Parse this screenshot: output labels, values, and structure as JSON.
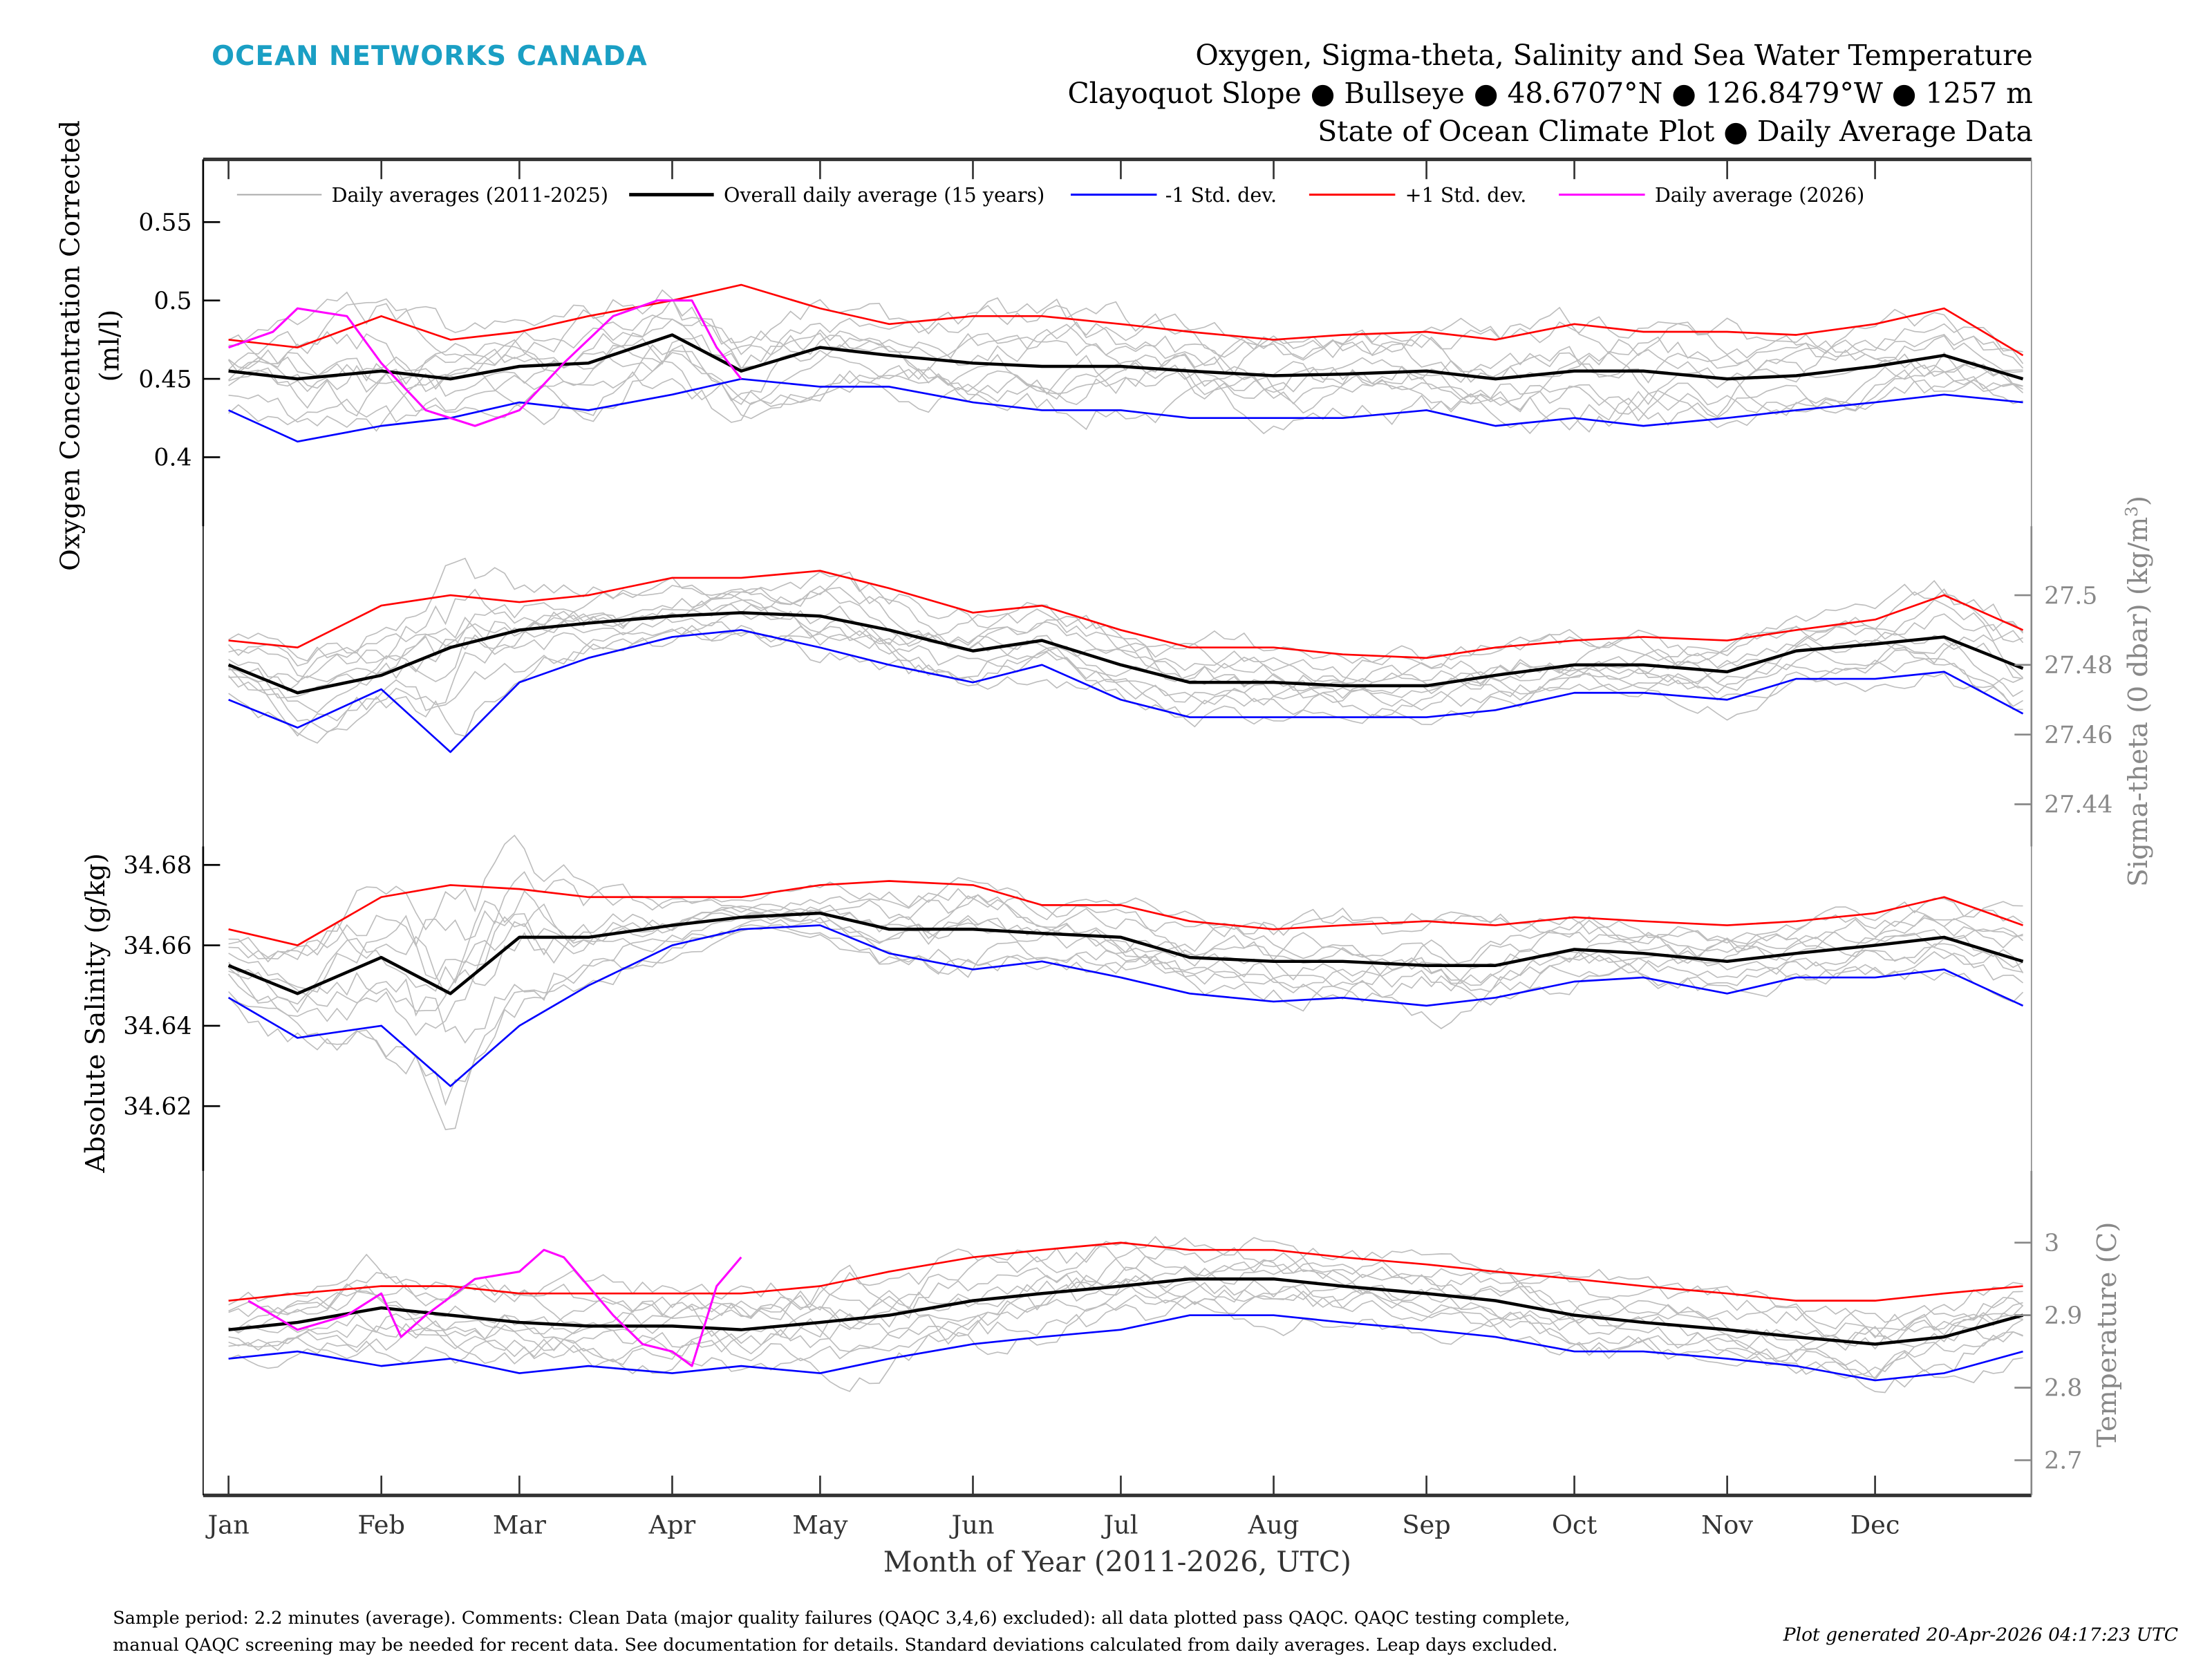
{
  "brand": {
    "name": "OCEAN NETWORKS CANADA",
    "color": "#1a9fc4"
  },
  "header": {
    "title": "Oxygen, Sigma-theta, Salinity and Sea Water Temperature",
    "subtitle": "Clayoquot Slope ● Bullseye ● 48.6707°N ● 126.8479°W ● 1257 m",
    "subtitle2": "State of Ocean Climate Plot ● Daily Average Data"
  },
  "legend": {
    "placement": "top",
    "items": [
      {
        "label": "Daily averages (2011-2025)",
        "color": "#aaaaaa"
      },
      {
        "label": "Overall daily average (15 years)",
        "color": "#000000"
      },
      {
        "label": "-1 Std. dev.",
        "color": "#0000ff"
      },
      {
        "label": "+1 Std. dev.",
        "color": "#ff0000"
      },
      {
        "label": "Daily average (2026)",
        "color": "#ff00ff"
      }
    ]
  },
  "x_axis": {
    "label": "Month of Year (2011-2026, UTC)",
    "ticks": [
      "Jan",
      "Feb",
      "Mar",
      "Apr",
      "May",
      "Jun",
      "Jul",
      "Aug",
      "Sep",
      "Oct",
      "Nov",
      "Dec"
    ],
    "tick_days": [
      1,
      32,
      60,
      91,
      121,
      152,
      182,
      213,
      244,
      274,
      305,
      335
    ],
    "range_days": [
      1,
      365
    ]
  },
  "footer": {
    "note_line1": "Sample period: 2.2 minutes (average). Comments: Clean Data (major quality failures (QAQC 3,4,6) excluded): all data plotted pass QAQC. QAQC testing complete,",
    "note_line2": "manual QAQC screening may be needed for recent data. See documentation for details. Standard deviations calculated from daily averages. Leap days excluded.",
    "generated": "Plot generated 20-Apr-2026 04:17:23 UTC"
  },
  "chart_data": [
    {
      "type": "line",
      "ylabel": "Oxygen Concentration Corrected",
      "ylabel_unit": "(ml/l)",
      "axis_side": "left",
      "ylim": [
        0.356,
        0.59
      ],
      "yticks": [
        0.4,
        0.45,
        0.5,
        0.55
      ],
      "ytick_labels": [
        "0.4",
        "0.45",
        "0.5",
        "0.55"
      ],
      "x_days": [
        1,
        15,
        32,
        46,
        60,
        74,
        91,
        105,
        121,
        135,
        152,
        166,
        182,
        196,
        213,
        227,
        244,
        258,
        274,
        288,
        305,
        319,
        335,
        349,
        365
      ],
      "mean": [
        0.455,
        0.45,
        0.455,
        0.45,
        0.458,
        0.46,
        0.478,
        0.455,
        0.47,
        0.465,
        0.46,
        0.458,
        0.458,
        0.455,
        0.452,
        0.453,
        0.455,
        0.45,
        0.455,
        0.455,
        0.45,
        0.452,
        0.458,
        0.465,
        0.45
      ],
      "plus_std": [
        0.475,
        0.47,
        0.49,
        0.475,
        0.48,
        0.49,
        0.5,
        0.51,
        0.495,
        0.485,
        0.49,
        0.49,
        0.485,
        0.48,
        0.475,
        0.478,
        0.48,
        0.475,
        0.485,
        0.48,
        0.48,
        0.478,
        0.485,
        0.495,
        0.465
      ],
      "minus_std": [
        0.43,
        0.41,
        0.42,
        0.425,
        0.435,
        0.43,
        0.44,
        0.45,
        0.445,
        0.445,
        0.435,
        0.43,
        0.43,
        0.425,
        0.425,
        0.425,
        0.43,
        0.42,
        0.425,
        0.42,
        0.425,
        0.43,
        0.435,
        0.44,
        0.435
      ],
      "current_days": [
        1,
        10,
        15,
        25,
        32,
        41,
        51,
        60,
        69,
        79,
        88,
        95,
        100,
        105
      ],
      "current": [
        0.47,
        0.48,
        0.495,
        0.49,
        0.46,
        0.43,
        0.42,
        0.43,
        0.46,
        0.49,
        0.5,
        0.5,
        0.47,
        0.45
      ]
    },
    {
      "type": "line",
      "ylabel": "Sigma-theta (0 dbar) (kg/m",
      "ylabel_sup": "3",
      "ylabel_close": ")",
      "axis_side": "right",
      "ylim": [
        27.4279,
        27.5198
      ],
      "yticks": [
        27.44,
        27.46,
        27.48,
        27.5
      ],
      "ytick_labels": [
        "27.44",
        "27.46",
        "27.48",
        "27.5"
      ],
      "x_days": [
        1,
        15,
        32,
        46,
        60,
        74,
        91,
        105,
        121,
        135,
        152,
        166,
        182,
        196,
        213,
        227,
        244,
        258,
        274,
        288,
        305,
        319,
        335,
        349,
        365
      ],
      "mean": [
        27.48,
        27.472,
        27.477,
        27.485,
        27.49,
        27.492,
        27.494,
        27.495,
        27.494,
        27.49,
        27.484,
        27.487,
        27.48,
        27.475,
        27.475,
        27.474,
        27.474,
        27.477,
        27.48,
        27.48,
        27.478,
        27.484,
        27.486,
        27.488,
        27.479
      ],
      "plus_std": [
        27.487,
        27.485,
        27.497,
        27.5,
        27.498,
        27.5,
        27.505,
        27.505,
        27.507,
        27.502,
        27.495,
        27.497,
        27.49,
        27.485,
        27.485,
        27.483,
        27.482,
        27.485,
        27.487,
        27.488,
        27.487,
        27.49,
        27.493,
        27.5,
        27.49
      ],
      "minus_std": [
        27.47,
        27.462,
        27.473,
        27.455,
        27.475,
        27.482,
        27.488,
        27.49,
        27.485,
        27.48,
        27.475,
        27.48,
        27.47,
        27.465,
        27.465,
        27.465,
        27.465,
        27.467,
        27.472,
        27.472,
        27.47,
        27.476,
        27.476,
        27.478,
        27.466
      ]
    },
    {
      "type": "line",
      "ylabel": "Absolute Salinity (g/kg)",
      "axis_side": "left",
      "ylim": [
        34.6039,
        34.6846
      ],
      "yticks": [
        34.62,
        34.64,
        34.66,
        34.68
      ],
      "ytick_labels": [
        "34.62",
        "34.64",
        "34.66",
        "34.68"
      ],
      "x_days": [
        1,
        15,
        32,
        46,
        60,
        74,
        91,
        105,
        121,
        135,
        152,
        166,
        182,
        196,
        213,
        227,
        244,
        258,
        274,
        288,
        305,
        319,
        335,
        349,
        365
      ],
      "mean": [
        34.655,
        34.648,
        34.657,
        34.648,
        34.662,
        34.662,
        34.665,
        34.667,
        34.668,
        34.664,
        34.664,
        34.663,
        34.662,
        34.657,
        34.656,
        34.656,
        34.655,
        34.655,
        34.659,
        34.658,
        34.656,
        34.658,
        34.66,
        34.662,
        34.656
      ],
      "plus_std": [
        34.664,
        34.66,
        34.672,
        34.675,
        34.674,
        34.672,
        34.672,
        34.672,
        34.675,
        34.676,
        34.675,
        34.67,
        34.67,
        34.666,
        34.664,
        34.665,
        34.666,
        34.665,
        34.667,
        34.666,
        34.665,
        34.666,
        34.668,
        34.672,
        34.665
      ],
      "minus_std": [
        34.647,
        34.637,
        34.64,
        34.625,
        34.64,
        34.65,
        34.66,
        34.664,
        34.665,
        34.658,
        34.654,
        34.656,
        34.652,
        34.648,
        34.646,
        34.647,
        34.645,
        34.647,
        34.651,
        34.652,
        34.648,
        34.652,
        34.652,
        34.654,
        34.645
      ]
    },
    {
      "type": "line",
      "ylabel": "Temperature (C)",
      "axis_side": "right",
      "ylim": [
        2.6515,
        3.099
      ],
      "yticks": [
        2.7,
        2.8,
        2.9,
        3.0
      ],
      "ytick_labels": [
        "2.7",
        "2.8",
        "2.9",
        "3"
      ],
      "x_days": [
        1,
        15,
        32,
        46,
        60,
        74,
        91,
        105,
        121,
        135,
        152,
        166,
        182,
        196,
        213,
        227,
        244,
        258,
        274,
        288,
        305,
        319,
        335,
        349,
        365
      ],
      "mean": [
        2.88,
        2.89,
        2.91,
        2.9,
        2.89,
        2.885,
        2.885,
        2.88,
        2.89,
        2.9,
        2.92,
        2.93,
        2.94,
        2.95,
        2.95,
        2.94,
        2.93,
        2.92,
        2.9,
        2.89,
        2.88,
        2.87,
        2.86,
        2.87,
        2.9
      ],
      "plus_std": [
        2.92,
        2.93,
        2.94,
        2.94,
        2.93,
        2.93,
        2.93,
        2.93,
        2.94,
        2.96,
        2.98,
        2.99,
        3.0,
        2.99,
        2.99,
        2.98,
        2.97,
        2.96,
        2.95,
        2.94,
        2.93,
        2.92,
        2.92,
        2.93,
        2.94
      ],
      "minus_std": [
        2.84,
        2.85,
        2.83,
        2.84,
        2.82,
        2.83,
        2.82,
        2.83,
        2.82,
        2.84,
        2.86,
        2.87,
        2.88,
        2.9,
        2.9,
        2.89,
        2.88,
        2.87,
        2.85,
        2.85,
        2.84,
        2.83,
        2.81,
        2.82,
        2.85
      ],
      "current_days": [
        5,
        10,
        15,
        25,
        32,
        36,
        41,
        51,
        60,
        65,
        69,
        79,
        85,
        91,
        95,
        100,
        105
      ],
      "current": [
        2.92,
        2.9,
        2.88,
        2.9,
        2.93,
        2.87,
        2.9,
        2.95,
        2.96,
        2.99,
        2.98,
        2.9,
        2.86,
        2.85,
        2.83,
        2.94,
        2.98
      ]
    }
  ]
}
